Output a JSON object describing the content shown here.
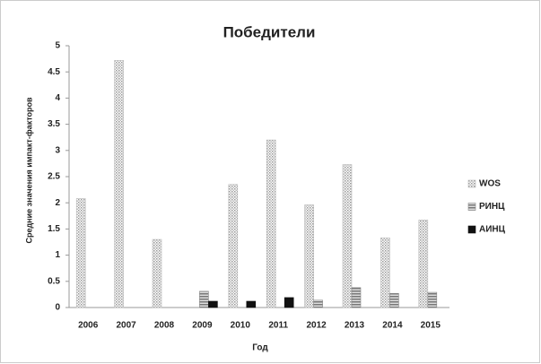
{
  "chart_data": {
    "type": "bar",
    "title": "Победители",
    "x_label": "Год",
    "y_label": "Средние значения импакт-факторов",
    "categories": [
      "2006",
      "2007",
      "2008",
      "2009",
      "2010",
      "2011",
      "2012",
      "2013",
      "2014",
      "2015"
    ],
    "series": [
      {
        "name": "WOS",
        "color": "#b8b8b8",
        "values": [
          2.08,
          4.72,
          1.3,
          null,
          2.35,
          3.2,
          1.96,
          2.73,
          1.33,
          1.67
        ]
      },
      {
        "name": "РИНЦ",
        "color": "#888888",
        "values": [
          null,
          null,
          null,
          0.31,
          null,
          null,
          0.14,
          0.38,
          0.27,
          0.29
        ]
      },
      {
        "name": "АИНЦ",
        "color": "#111111",
        "values": [
          null,
          null,
          null,
          0.12,
          0.12,
          0.19,
          null,
          null,
          null,
          null
        ]
      }
    ],
    "ylim": [
      0,
      5
    ],
    "yticks": [
      0,
      0.5,
      1,
      1.5,
      2,
      2.5,
      3,
      3.5,
      4,
      4.5,
      5
    ],
    "grid": false,
    "legend": "right"
  }
}
